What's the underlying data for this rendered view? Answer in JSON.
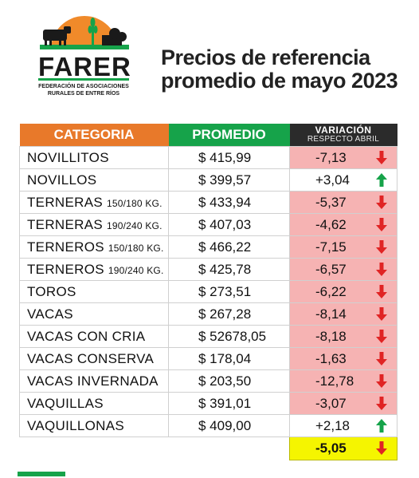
{
  "logo": {
    "name": "FARER",
    "line1": "FEDERACIÓN DE ASOCIACIONES",
    "line2": "RURALES DE ENTRE RÍOS",
    "colors": {
      "orange": "#f08a2a",
      "green": "#16a34a",
      "black": "#1a1a1a"
    }
  },
  "title": {
    "line1": "Precios de referencia",
    "line2": "promedio de mayo 2023"
  },
  "table": {
    "headers": {
      "categoria": "CATEGORIA",
      "promedio": "PROMEDIO",
      "variacion": "VARIACIÓN",
      "variacion_sub": "RESPECTO ABRIL"
    },
    "rows": [
      {
        "categoria": "NOVILLITOS",
        "sub": "",
        "promedio": "$ 415,99",
        "variacion": "-7,13",
        "trend": "down"
      },
      {
        "categoria": "NOVILLOS",
        "sub": "",
        "promedio": "$ 399,57",
        "variacion": "+3,04",
        "trend": "up"
      },
      {
        "categoria": "TERNERAS",
        "sub": "150/180 KG.",
        "promedio": "$ 433,94",
        "variacion": "-5,37",
        "trend": "down"
      },
      {
        "categoria": "TERNERAS",
        "sub": "190/240 KG.",
        "promedio": "$ 407,03",
        "variacion": "-4,62",
        "trend": "down"
      },
      {
        "categoria": "TERNEROS",
        "sub": "150/180 KG.",
        "promedio": "$ 466,22",
        "variacion": "-7,15",
        "trend": "down"
      },
      {
        "categoria": "TERNEROS",
        "sub": "190/240 KG.",
        "promedio": "$ 425,78",
        "variacion": "-6,57",
        "trend": "down"
      },
      {
        "categoria": "TOROS",
        "sub": "",
        "promedio": "$ 273,51",
        "variacion": "-6,22",
        "trend": "down"
      },
      {
        "categoria": "VACAS",
        "sub": "",
        "promedio": "$ 267,28",
        "variacion": "-8,14",
        "trend": "down"
      },
      {
        "categoria": "VACAS CON CRIA",
        "sub": "",
        "promedio": "$ 52678,05",
        "variacion": "-8,18",
        "trend": "down"
      },
      {
        "categoria": "VACAS CONSERVA",
        "sub": "",
        "promedio": "$ 178,04",
        "variacion": "-1,63",
        "trend": "down"
      },
      {
        "categoria": "VACAS INVERNADA",
        "sub": "",
        "promedio": "$ 203,50",
        "variacion": "-12,78",
        "trend": "down"
      },
      {
        "categoria": "VAQUILLAS",
        "sub": "",
        "promedio": "$ 391,01",
        "variacion": "-3,07",
        "trend": "down"
      },
      {
        "categoria": "VAQUILLONAS",
        "sub": "",
        "promedio": "$ 409,00",
        "variacion": "+2,18",
        "trend": "up"
      }
    ],
    "total": {
      "variacion": "-5,05",
      "trend": "down"
    }
  },
  "colors": {
    "down_bg": "#f6b3b3",
    "down_arrow": "#e02424",
    "up_arrow": "#16a34a",
    "total_bg": "#f5f500"
  }
}
